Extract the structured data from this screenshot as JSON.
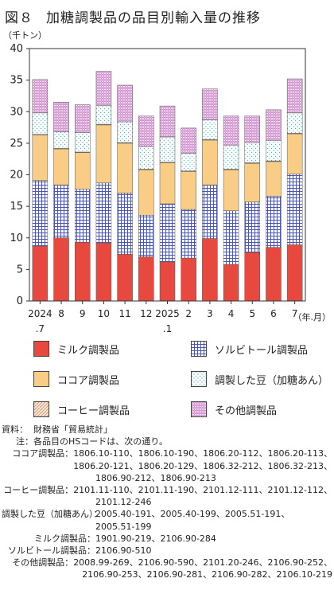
{
  "title": {
    "number": "図８",
    "text": "加糖調製品の品目別輸入量の推移"
  },
  "unit_label": "（千トン）",
  "chart_data": {
    "type": "bar",
    "stacked": true,
    "y_unit": "千トン",
    "ylim": [
      0,
      40
    ],
    "yticks": [
      0,
      5,
      10,
      15,
      20,
      25,
      30,
      35,
      40
    ],
    "x_unit_label": "（年.月）",
    "categories": [
      {
        "top": "2024",
        "bottom": ".7"
      },
      {
        "top": "8",
        "bottom": ""
      },
      {
        "top": "9",
        "bottom": ""
      },
      {
        "top": "10",
        "bottom": ""
      },
      {
        "top": "11",
        "bottom": ""
      },
      {
        "top": "12",
        "bottom": ""
      },
      {
        "top": "2025",
        "bottom": ".1"
      },
      {
        "top": "2",
        "bottom": ""
      },
      {
        "top": "3",
        "bottom": ""
      },
      {
        "top": "4",
        "bottom": ""
      },
      {
        "top": "5",
        "bottom": ""
      },
      {
        "top": "6",
        "bottom": ""
      },
      {
        "top": "7",
        "bottom": ""
      }
    ],
    "series": [
      {
        "name": "ミルク調製品",
        "color": "#e8493f",
        "values": [
          8.7,
          10.0,
          9.3,
          9.2,
          7.4,
          7.0,
          6.2,
          6.8,
          9.9,
          5.8,
          7.7,
          8.5,
          8.9
        ]
      },
      {
        "name": "ソルビトール調製品",
        "color": "#4a56b0",
        "values": [
          10.4,
          8.4,
          8.4,
          9.5,
          9.7,
          6.6,
          9.2,
          7.7,
          8.5,
          8.5,
          8.0,
          8.1,
          11.2
        ]
      },
      {
        "name": "ココア調製品",
        "color": "#f9cd86",
        "values": [
          7.2,
          5.7,
          5.8,
          9.2,
          7.9,
          7.2,
          6.5,
          6.0,
          7.1,
          6.5,
          6.1,
          5.5,
          6.4
        ]
      },
      {
        "name": "コーヒー調製品",
        "color": "#c98a5a",
        "values": [
          0.1,
          0.1,
          0.1,
          0.1,
          0.1,
          0.1,
          0.1,
          0.1,
          0.1,
          0.1,
          0.1,
          0.1,
          0.1
        ]
      },
      {
        "name": "調製した豆（加糖あん）",
        "color": "#54b9b9",
        "values": [
          3.4,
          2.6,
          3.1,
          3.0,
          3.3,
          3.6,
          4.0,
          2.8,
          3.1,
          3.8,
          3.2,
          3.2,
          3.2
        ]
      },
      {
        "name": "その他調製品",
        "color": "#c26ac0",
        "values": [
          5.3,
          4.7,
          4.4,
          5.4,
          5.8,
          4.8,
          4.9,
          4.0,
          4.9,
          4.6,
          4.2,
          4.9,
          5.4
        ]
      }
    ]
  },
  "notes": {
    "source_label": "資料：",
    "source_text": "財務省「貿易統計」",
    "note_label": "注：",
    "note_text": "各品目のHSコードは、次の通り。",
    "items": [
      {
        "label": "ココア調製品：",
        "lines": [
          "1806.10-110、1806.10-190、1806.20-112、1806.20-113、",
          "1806.20-121、1806.20-129、1806.32-212、1806.32-213、",
          "1806.90-212、1806.90-213"
        ]
      },
      {
        "label": "コーヒー調製品：",
        "lines": [
          "2101.11-110、2101.11-190、2101.12-111、2101.12-112、",
          "2101.12-246"
        ]
      },
      {
        "label": "調製した豆（加糖あん）：",
        "lines": [
          "2005.40-191、2005.40-199、2005.51-191、",
          "2005.51-199"
        ]
      },
      {
        "label": "ミルク調製品：",
        "lines": [
          "1901.90-219、2106.90-284"
        ]
      },
      {
        "label": "ソルビトール調製品：",
        "lines": [
          "2106.90-510"
        ]
      },
      {
        "label": "その他調製品：",
        "lines": [
          "2008.99-269、2106.90-590、2101.20-246、2106.90-252、",
          "2106.90-253、2106.90-281、2106.90-282、2106.10-219"
        ]
      }
    ]
  }
}
